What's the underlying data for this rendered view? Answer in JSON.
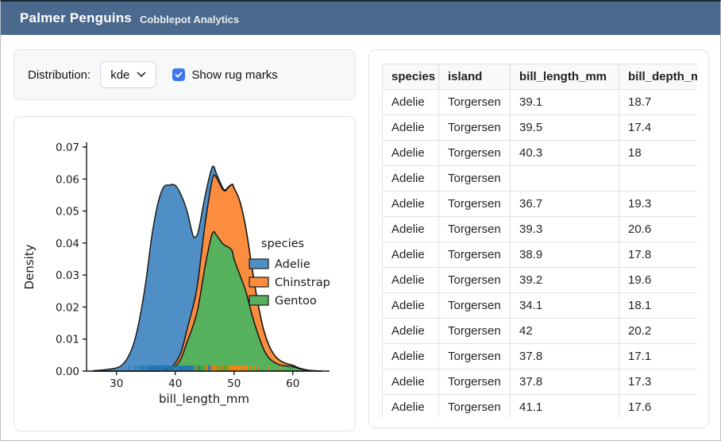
{
  "window": {
    "frame_color": "#1d2835"
  },
  "header": {
    "title": "Palmer Penguins",
    "subtitle": "Cobblepot Analytics",
    "bg_color": "#4a698c"
  },
  "controls": {
    "distribution_label": "Distribution:",
    "distribution_value": "kde",
    "rug_label": "Show rug marks",
    "rug_checked": true,
    "checkbox_color": "#3b76f3"
  },
  "chart_data": {
    "type": "area",
    "subtype": "stacked_kde",
    "title": "",
    "xlabel": "bill_length_mm",
    "ylabel": "Density",
    "xlim": [
      24.9,
      64.9
    ],
    "ylim": [
      0,
      0.07
    ],
    "xticks": [
      30,
      40,
      50,
      60
    ],
    "yticks": [
      0,
      0.01,
      0.02,
      0.03,
      0.04,
      0.05,
      0.06,
      0.07
    ],
    "grid": false,
    "legend": {
      "title": "species",
      "position": "center-right",
      "entries": [
        "Adelie",
        "Chinstrap",
        "Gentoo"
      ]
    },
    "x": [
      26,
      28,
      30,
      31,
      32,
      33,
      34,
      35,
      36,
      37,
      38,
      39,
      40,
      41,
      42,
      43,
      43.5,
      44,
      45,
      46,
      46.5,
      47,
      48,
      48.5,
      49,
      49.7,
      50,
      51,
      52,
      53,
      54,
      55,
      56,
      57,
      58,
      59,
      60,
      61,
      62,
      63,
      65
    ],
    "series": [
      {
        "name": "Gentoo",
        "fill": "#57b25e",
        "rug_color": "#2ca02c",
        "values": [
          0,
          0,
          0,
          0,
          0,
          0,
          0,
          0,
          0,
          0,
          0.0002,
          0.0005,
          0.0015,
          0.004,
          0.009,
          0.014,
          0.017,
          0.021,
          0.032,
          0.041,
          0.0435,
          0.0425,
          0.04,
          0.0392,
          0.0388,
          0.0375,
          0.035,
          0.03,
          0.025,
          0.018,
          0.012,
          0.007,
          0.004,
          0.0026,
          0.0018,
          0.0016,
          0.0014,
          0.0008,
          0.0004,
          0.0002,
          0
        ]
      },
      {
        "name": "Chinstrap",
        "fill": "#fc8d3f",
        "rug_color": "#ff7f0e",
        "values": [
          0,
          0,
          0,
          0,
          0,
          0,
          0,
          0,
          0,
          0,
          0.0002,
          0.0004,
          0.001,
          0.002,
          0.004,
          0.006,
          0.007,
          0.009,
          0.013,
          0.016,
          0.0175,
          0.018,
          0.017,
          0.0171,
          0.0185,
          0.0208,
          0.0222,
          0.023,
          0.0198,
          0.015,
          0.0098,
          0.0062,
          0.0038,
          0.0021,
          0.0013,
          0.0007,
          0.0004,
          0.0002,
          0.0001,
          0,
          0
        ]
      },
      {
        "name": "Adelie",
        "fill": "#4f8fc6",
        "rug_color": "#1f77b4",
        "values": [
          0.0001,
          0.0004,
          0.001,
          0.002,
          0.0045,
          0.009,
          0.017,
          0.028,
          0.042,
          0.052,
          0.057,
          0.0572,
          0.0555,
          0.049,
          0.037,
          0.0225,
          0.018,
          0.0142,
          0.009,
          0.005,
          0.003,
          0.0012,
          0.0005,
          0.0003,
          0.0002,
          0.0001,
          0.0001,
          0,
          0,
          0,
          0,
          0,
          0,
          0,
          0,
          0,
          0,
          0,
          0,
          0,
          0
        ]
      }
    ],
    "rug": {
      "Adelie": [
        39.1,
        39.5,
        40.3,
        36.7,
        39.3,
        38.9,
        39.2,
        34.1,
        42.0,
        37.8,
        41.1,
        38.6,
        34.6,
        36.6,
        38.7,
        42.5,
        34.4,
        46.0,
        37.8,
        37.7,
        35.9,
        38.2,
        38.8,
        35.3,
        40.6,
        40.5,
        37.9,
        39.5,
        37.2,
        40.9,
        36.4,
        39.2,
        42.2,
        37.6,
        39.8,
        36.5,
        40.8,
        36.0,
        44.1,
        37.0,
        39.6,
        41.1,
        37.5,
        42.3,
        40.1,
        35.0,
        42.0,
        34.5,
        41.4,
        39.0,
        40.6,
        36.5,
        37.6,
        35.7,
        41.3,
        41.6,
        35.5,
        35.9,
        41.8,
        33.5,
        39.7,
        45.8,
        42.8,
        37.2,
        36.2,
        42.1,
        34.6,
        42.9,
        35.1,
        37.3,
        36.3,
        36.9,
        38.3,
        35.7,
        34.0,
        36.2,
        40.8,
        38.1,
        33.1,
        43.2,
        41.0,
        37.9,
        38.2,
        43.2,
        45.6,
        42.7,
        38.6,
        36.8,
        41.5,
        32.1,
        40.7,
        39.0,
        36.6,
        38.1,
        40.2
      ],
      "Chinstrap": [
        46.5,
        50.0,
        51.3,
        45.4,
        52.7,
        45.2,
        46.1,
        51.3,
        46.0,
        51.7,
        47.0,
        52.0,
        45.9,
        50.5,
        50.3,
        58.0,
        46.4,
        49.2,
        42.4,
        48.5,
        43.2,
        50.6,
        46.7,
        52.0,
        50.5,
        49.5,
        52.8,
        40.9,
        54.2,
        42.5,
        51.0,
        49.7,
        47.5,
        47.6,
        46.9,
        53.5,
        49.0,
        46.2,
        50.9,
        45.5,
        50.8,
        50.1,
        51.5,
        49.8,
        48.1,
        51.4,
        45.7,
        50.7,
        42.5,
        52.2,
        45.2,
        49.3,
        50.2,
        45.6,
        51.9,
        46.8,
        55.8,
        43.5,
        49.6,
        50.8
      ],
      "Gentoo": [
        46.1,
        50.0,
        48.7,
        47.6,
        46.5,
        45.4,
        46.7,
        43.3,
        46.8,
        40.9,
        49.0,
        45.5,
        48.4,
        45.8,
        49.3,
        42.0,
        49.2,
        46.2,
        48.7,
        50.2,
        45.1,
        46.5,
        46.3,
        42.9,
        44.5,
        47.8,
        48.2,
        47.3,
        42.8,
        45.1,
        59.6,
        49.1,
        48.4,
        42.6,
        44.4,
        44.0,
        42.7,
        49.6,
        45.3,
        50.5,
        43.6,
        45.5,
        44.9,
        45.2,
        46.6,
        48.5,
        50.1,
        45.0,
        43.8,
        43.2,
        50.4,
        45.3,
        46.2,
        45.7,
        54.3,
        49.8,
        47.5,
        52.1,
        52.2,
        49.5
      ]
    },
    "axis_color": "#1b1b1b",
    "outline_color": "#1b1b1b"
  },
  "table": {
    "columns": [
      "species",
      "island",
      "bill_length_mm",
      "bill_depth_mm"
    ],
    "rows": [
      [
        "Adelie",
        "Torgersen",
        "39.1",
        "18.7"
      ],
      [
        "Adelie",
        "Torgersen",
        "39.5",
        "17.4"
      ],
      [
        "Adelie",
        "Torgersen",
        "40.3",
        "18"
      ],
      [
        "Adelie",
        "Torgersen",
        "",
        ""
      ],
      [
        "Adelie",
        "Torgersen",
        "36.7",
        "19.3"
      ],
      [
        "Adelie",
        "Torgersen",
        "39.3",
        "20.6"
      ],
      [
        "Adelie",
        "Torgersen",
        "38.9",
        "17.8"
      ],
      [
        "Adelie",
        "Torgersen",
        "39.2",
        "19.6"
      ],
      [
        "Adelie",
        "Torgersen",
        "34.1",
        "18.1"
      ],
      [
        "Adelie",
        "Torgersen",
        "42",
        "20.2"
      ],
      [
        "Adelie",
        "Torgersen",
        "37.8",
        "17.1"
      ],
      [
        "Adelie",
        "Torgersen",
        "37.8",
        "17.3"
      ],
      [
        "Adelie",
        "Torgersen",
        "41.1",
        "17.6"
      ]
    ]
  }
}
